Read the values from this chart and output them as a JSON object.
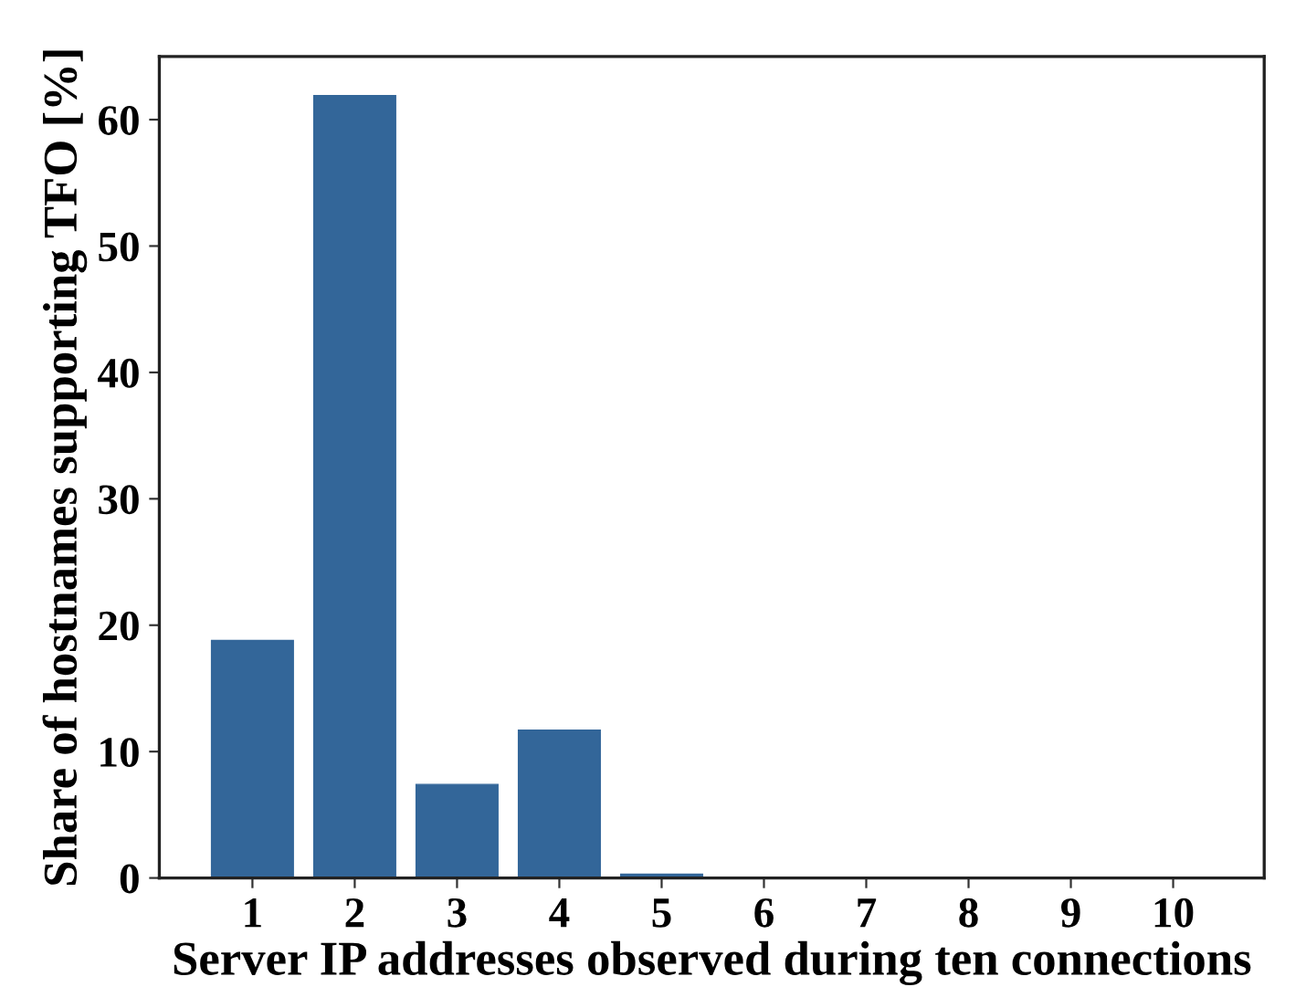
{
  "chart_data": {
    "type": "bar",
    "xlabel": "Server IP addresses observed during ten connections",
    "ylabel": "Share of hostnames supporting TFO [%]",
    "categories": [
      "1",
      "2",
      "3",
      "4",
      "5",
      "6",
      "7",
      "8",
      "9",
      "10"
    ],
    "values": [
      18.8,
      61.9,
      7.4,
      11.7,
      0.3,
      0,
      0,
      0,
      0,
      0
    ],
    "color": "#336699",
    "ylim": [
      0,
      65
    ],
    "yticks": [
      0,
      10,
      20,
      30,
      40,
      50,
      60
    ],
    "grid": false,
    "legend": false
  }
}
